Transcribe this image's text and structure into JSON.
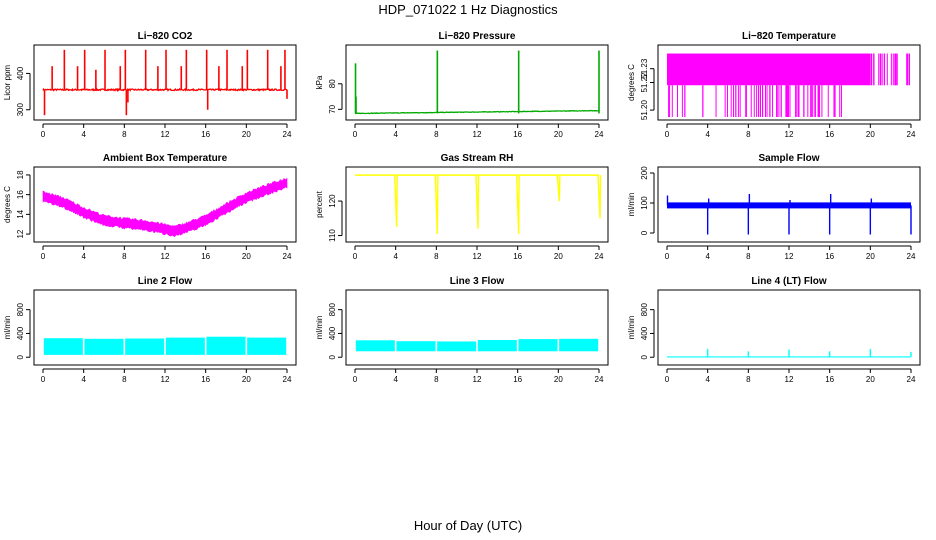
{
  "figure": {
    "title": "HDP_071022  1 Hz Diagnostics",
    "xlabel": "Hour of Day (UTC)"
  },
  "chart_data": [
    {
      "type": "line",
      "title": "Li−820 CO2",
      "ylabel": "Licor ppm",
      "color": "#ff0000",
      "xlim": [
        0,
        24
      ],
      "xticks": [
        0,
        4,
        8,
        12,
        16,
        20,
        24
      ],
      "ylim": [
        280,
        470
      ],
      "yticks": [
        300,
        400
      ],
      "baseline": 355,
      "noise": 4,
      "spikes": [
        [
          0.15,
          285
        ],
        [
          0.9,
          420
        ],
        [
          2.1,
          465
        ],
        [
          3.4,
          420
        ],
        [
          4.1,
          465
        ],
        [
          5.2,
          410
        ],
        [
          6.1,
          465
        ],
        [
          7.6,
          420
        ],
        [
          8.1,
          465
        ],
        [
          8.2,
          285
        ],
        [
          8.35,
          320
        ],
        [
          10.1,
          465
        ],
        [
          11.3,
          420
        ],
        [
          12.1,
          465
        ],
        [
          13.6,
          420
        ],
        [
          14.1,
          465
        ],
        [
          16.1,
          465
        ],
        [
          16.2,
          300
        ],
        [
          17.3,
          420
        ],
        [
          18.1,
          465
        ],
        [
          19.6,
          420
        ],
        [
          20.1,
          465
        ],
        [
          22.1,
          465
        ],
        [
          23.4,
          420
        ],
        [
          23.8,
          465
        ],
        [
          24.0,
          330
        ]
      ]
    },
    {
      "type": "line",
      "title": "Li−820 Pressure",
      "ylabel": "kPa",
      "color": "#00aa00",
      "xlim": [
        0,
        24
      ],
      "xticks": [
        0,
        4,
        8,
        12,
        16,
        20,
        24
      ],
      "ylim": [
        67,
        94
      ],
      "yticks": [
        70,
        80
      ],
      "baseline": 68.4,
      "noise": 0.2,
      "drift_end": 69.5,
      "spikes": [
        [
          0.05,
          88
        ],
        [
          0.1,
          75
        ],
        [
          8.1,
          93
        ],
        [
          16.1,
          93
        ],
        [
          24.0,
          93
        ]
      ]
    },
    {
      "type": "line",
      "title": "Li−820 Temperature",
      "ylabel": "degrees C",
      "color": "#ff00ff",
      "xlim": [
        0,
        24
      ],
      "xticks": [
        0,
        4,
        8,
        12,
        16,
        20,
        24
      ],
      "ylim": [
        51.195,
        51.245
      ],
      "yticks": [
        51.2,
        51.22,
        51.23
      ],
      "ytick_labels": [
        "51.20",
        "51.22",
        "51.23"
      ],
      "levels": [
        51.218,
        51.241
      ],
      "dense_range": [
        4.0,
        16.6
      ]
    },
    {
      "type": "line",
      "title": "Ambient Box Temperature",
      "ylabel": "degrees C",
      "color": "#ff00ff",
      "xlim": [
        0,
        24
      ],
      "xticks": [
        0,
        4,
        8,
        12,
        16,
        20,
        24
      ],
      "ylim": [
        11.5,
        18.5
      ],
      "yticks": [
        12,
        14,
        16,
        18
      ],
      "band": 0.7,
      "curve": [
        [
          0,
          15.8
        ],
        [
          2,
          15.2
        ],
        [
          4,
          14.2
        ],
        [
          6,
          13.4
        ],
        [
          8,
          13.1
        ],
        [
          10,
          12.9
        ],
        [
          12,
          12.5
        ],
        [
          13,
          12.3
        ],
        [
          14,
          12.6
        ],
        [
          16,
          13.4
        ],
        [
          18,
          14.6
        ],
        [
          20,
          15.7
        ],
        [
          22,
          16.5
        ],
        [
          24,
          17.2
        ]
      ]
    },
    {
      "type": "line",
      "title": "Gas Stream RH",
      "ylabel": "percent",
      "color": "#ffff00",
      "xlim": [
        0,
        24
      ],
      "xticks": [
        0,
        4,
        8,
        12,
        16,
        20,
        24
      ],
      "ylim": [
        109,
        129
      ],
      "yticks": [
        110,
        120
      ],
      "baseline": 127.5,
      "dips": [
        [
          4.0,
          112.5
        ],
        [
          8.0,
          110.5
        ],
        [
          12.0,
          112
        ],
        [
          16.0,
          110.5
        ],
        [
          20.0,
          120
        ],
        [
          24.0,
          115
        ]
      ]
    },
    {
      "type": "line",
      "title": "Sample Flow",
      "ylabel": "ml/min",
      "color": "#0000ff",
      "xlim": [
        0,
        24
      ],
      "xticks": [
        0,
        4,
        8,
        12,
        16,
        20,
        24
      ],
      "ylim": [
        -20,
        210
      ],
      "yticks": [
        0,
        100,
        200
      ],
      "baseline": 92,
      "band": 20,
      "spikes": [
        [
          0.05,
          125
        ],
        [
          4.0,
          -5
        ],
        [
          4.1,
          115
        ],
        [
          8.0,
          -5
        ],
        [
          8.1,
          130
        ],
        [
          12.0,
          -5
        ],
        [
          12.1,
          110
        ],
        [
          16.0,
          -5
        ],
        [
          16.1,
          130
        ],
        [
          20.0,
          -5
        ],
        [
          20.1,
          115
        ],
        [
          24.0,
          -5
        ]
      ]
    },
    {
      "type": "line",
      "title": "Line 2 Flow",
      "ylabel": "ml/min",
      "color": "#00ffff",
      "xlim": [
        0,
        24
      ],
      "xticks": [
        0,
        4,
        8,
        12,
        16,
        20,
        24
      ],
      "ylim": [
        -80,
        1080
      ],
      "yticks": [
        0,
        400,
        800
      ],
      "band_low": 40,
      "band_high": 320,
      "gaps": [
        4,
        8,
        12,
        16,
        20
      ],
      "segment_highs": [
        320,
        310,
        315,
        330,
        345,
        330
      ]
    },
    {
      "type": "line",
      "title": "Line 3 Flow",
      "ylabel": "ml/min",
      "color": "#00ffff",
      "xlim": [
        0,
        24
      ],
      "xticks": [
        0,
        4,
        8,
        12,
        16,
        20,
        24
      ],
      "ylim": [
        -80,
        1080
      ],
      "yticks": [
        0,
        400,
        800
      ],
      "band_low": 100,
      "band_high": 290,
      "gaps": [
        4,
        8,
        12,
        16,
        20
      ],
      "segment_highs": [
        285,
        270,
        265,
        290,
        305,
        310
      ]
    },
    {
      "type": "line",
      "title": "Line 4 (LT) Flow",
      "ylabel": "ml/min",
      "color": "#00ffff",
      "xlim": [
        0,
        24
      ],
      "xticks": [
        0,
        4,
        8,
        12,
        16,
        20,
        24
      ],
      "ylim": [
        -80,
        1080
      ],
      "yticks": [
        0,
        400,
        800
      ],
      "baseline": 5,
      "spikes": [
        [
          4.0,
          140
        ],
        [
          8.0,
          100
        ],
        [
          12.0,
          130
        ],
        [
          16.0,
          100
        ],
        [
          20.0,
          140
        ],
        [
          24.0,
          90
        ]
      ]
    }
  ]
}
